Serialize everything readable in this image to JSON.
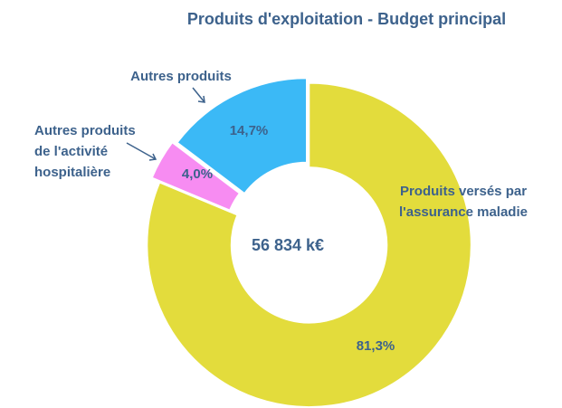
{
  "chart_data": {
    "type": "donut",
    "title": "Produits d'exploitation - Budget principal",
    "center_label": "56 834 k€",
    "categories": [
      "Produits versés par\nl'assurance maladie",
      "Autres produits\nde l'activité\nhospitalière",
      "Autres produits"
    ],
    "values": [
      81.3,
      4.0,
      14.7
    ],
    "value_labels": [
      "81,3%",
      "4,0%",
      "14,7%"
    ],
    "colors": [
      "#e3dc3c",
      "#f78cf2",
      "#3bb9f6"
    ]
  }
}
